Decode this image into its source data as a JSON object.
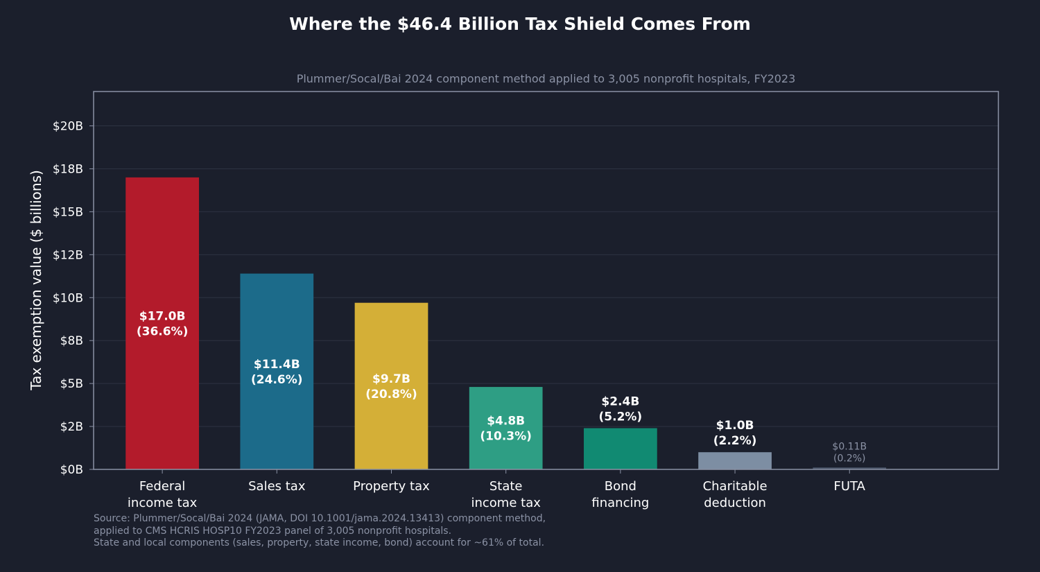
{
  "chart_data": {
    "type": "bar",
    "title": "Where the $46.4 Billion Tax Shield Comes From",
    "subtitle": "Plummer/Socal/Bai 2024 component method applied to 3,005 nonprofit hospitals, FY2023",
    "xlabel": "",
    "ylabel": "Tax exemption value ($ billions)",
    "ylim": [
      0,
      22
    ],
    "grid": true,
    "y_ticks": [
      {
        "value": 0,
        "label": "$0B"
      },
      {
        "value": 2.5,
        "label": "$2B"
      },
      {
        "value": 5,
        "label": "$5B"
      },
      {
        "value": 7.5,
        "label": "$8B"
      },
      {
        "value": 10,
        "label": "$10B"
      },
      {
        "value": 12.5,
        "label": "$12B"
      },
      {
        "value": 15,
        "label": "$15B"
      },
      {
        "value": 17.5,
        "label": "$18B"
      },
      {
        "value": 20,
        "label": "$20B"
      }
    ],
    "categories": [
      [
        "Federal",
        "income tax"
      ],
      [
        "Sales tax"
      ],
      [
        "Property tax"
      ],
      [
        "State",
        "income tax"
      ],
      [
        "Bond",
        "financing"
      ],
      [
        "Charitable",
        "deduction"
      ],
      [
        "FUTA"
      ]
    ],
    "values": [
      17.0,
      11.4,
      9.7,
      4.8,
      2.4,
      1.0,
      0.11
    ],
    "bar_labels": [
      [
        "$17.0B",
        "(36.6%)"
      ],
      [
        "$11.4B",
        "(24.6%)"
      ],
      [
        "$9.7B",
        "(20.8%)"
      ],
      [
        "$4.8B",
        "(10.3%)"
      ],
      [
        "$2.4B",
        "(5.2%)"
      ],
      [
        "$1.0B",
        "(2.2%)"
      ],
      [
        "$0.11B",
        "(0.2%)"
      ]
    ],
    "colors": [
      "#b31b2b",
      "#1c6b8a",
      "#d4af37",
      "#2e9e84",
      "#118a72",
      "#7d8ea3",
      "#4a5568"
    ]
  },
  "source_lines": [
    "Source: Plummer/Socal/Bai 2024 (JAMA, DOI 10.1001/jama.2024.13413) component method,",
    "applied to CMS HCRIS HOSP10 FY2023 panel of 3,005 nonprofit hospitals.",
    "State and local components (sales, property, state income, bond) account for ~61% of total."
  ],
  "theme": {
    "background": "#1b1f2c",
    "text": "#ffffff",
    "muted_text": "#8b92a5",
    "grid": "#2e3342",
    "axis": "#8b92a5"
  }
}
